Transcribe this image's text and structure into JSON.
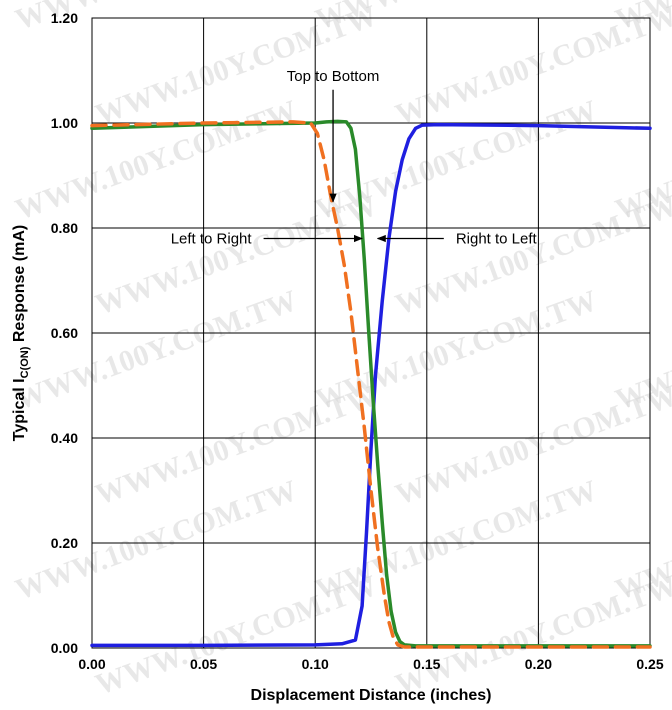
{
  "chart_data": {
    "type": "line",
    "xlabel": "Displacement Distance (inches)",
    "ylabel": {
      "prefix": "Typical I",
      "subscript": "C(ON)",
      "suffix": " Response (mA)"
    },
    "xlim": [
      0,
      0.25
    ],
    "ylim": [
      0,
      1.2
    ],
    "x_ticks": [
      "0.00",
      "0.05",
      "0.10",
      "0.15",
      "0.20",
      "0.25"
    ],
    "y_ticks": [
      "0.00",
      "0.20",
      "0.40",
      "0.60",
      "0.80",
      "1.00",
      "1.20"
    ],
    "grid": true,
    "legend": "none",
    "series": [
      {
        "color": "#1f1fe0",
        "style": "solid",
        "x": [
          0,
          0.05,
          0.1,
          0.112,
          0.118,
          0.121,
          0.123,
          0.125,
          0.127,
          0.13,
          0.133,
          0.136,
          0.139,
          0.142,
          0.145,
          0.148,
          0.155,
          0.2,
          0.25
        ],
        "y": [
          0.005,
          0.005,
          0.006,
          0.008,
          0.015,
          0.08,
          0.22,
          0.38,
          0.52,
          0.66,
          0.78,
          0.87,
          0.93,
          0.97,
          0.99,
          0.996,
          0.997,
          0.995,
          0.99
        ]
      },
      {
        "color": "#2a8a2a",
        "style": "solid",
        "x": [
          0,
          0.05,
          0.1,
          0.105,
          0.11,
          0.114,
          0.116,
          0.118,
          0.12,
          0.122,
          0.124,
          0.126,
          0.128,
          0.13,
          0.132,
          0.134,
          0.136,
          0.138,
          0.14,
          0.145,
          0.2,
          0.25
        ],
        "y": [
          0.99,
          0.997,
          1.0,
          1.002,
          1.003,
          1.002,
          0.99,
          0.95,
          0.86,
          0.74,
          0.6,
          0.47,
          0.35,
          0.24,
          0.14,
          0.07,
          0.03,
          0.012,
          0.006,
          0.004,
          0.004,
          0.004
        ]
      },
      {
        "color": "#f07020",
        "style": "dashed",
        "x": [
          0,
          0.05,
          0.09,
          0.098,
          0.101,
          0.104,
          0.107,
          0.11,
          0.113,
          0.116,
          0.119,
          0.122,
          0.125,
          0.128,
          0.131,
          0.133,
          0.135,
          0.137,
          0.14,
          0.2,
          0.25
        ],
        "y": [
          0.995,
          1.0,
          1.002,
          1.0,
          0.98,
          0.93,
          0.86,
          0.8,
          0.73,
          0.64,
          0.53,
          0.42,
          0.3,
          0.19,
          0.1,
          0.05,
          0.02,
          0.006,
          0.002,
          0.002,
          0.002
        ]
      }
    ],
    "annotations": [
      {
        "text": "Top to Bottom",
        "anchor": [
          0.108,
          1.09
        ],
        "target": [
          0.108,
          0.85
        ],
        "align": "middle"
      },
      {
        "text": "Left to Right",
        "anchor": [
          0.0715,
          0.78
        ],
        "target": [
          0.121,
          0.78
        ],
        "align": "end"
      },
      {
        "text": "Right to Left",
        "anchor": [
          0.163,
          0.78
        ],
        "target": [
          0.128,
          0.78
        ],
        "align": "start"
      }
    ]
  },
  "watermark": "WWW.100Y.COM.TW"
}
